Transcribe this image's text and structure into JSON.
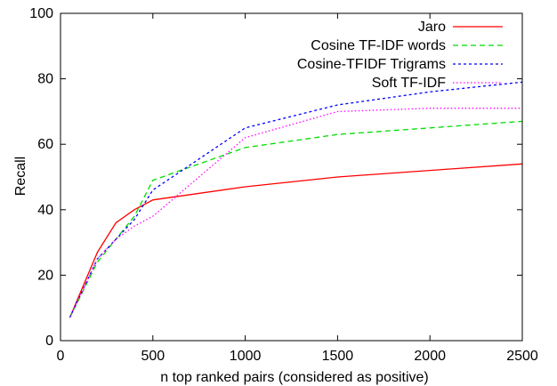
{
  "chart_data": {
    "type": "line",
    "title": "",
    "xlabel": "n top ranked pairs (considered as positive)",
    "ylabel": "Recall",
    "xlim": [
      0,
      2500
    ],
    "ylim": [
      0,
      100
    ],
    "xticks": [
      0,
      500,
      1000,
      1500,
      2000,
      2500
    ],
    "yticks": [
      0,
      20,
      40,
      60,
      80,
      100
    ],
    "grid": false,
    "legend_position": "top-right",
    "series": [
      {
        "name": "Jaro",
        "color": "#ff0000",
        "dash": "solid",
        "x": [
          50,
          200,
          300,
          400,
          500,
          1000,
          1500,
          2000,
          2500
        ],
        "y": [
          7,
          27,
          36,
          40,
          43,
          47,
          50,
          52,
          54
        ]
      },
      {
        "name": "Cosine TF-IDF words",
        "color": "#00dd00",
        "dash": "dashed",
        "x": [
          50,
          200,
          300,
          400,
          500,
          1000,
          1500,
          2000,
          2500
        ],
        "y": [
          7,
          24,
          31,
          38,
          49,
          59,
          63,
          65,
          67
        ]
      },
      {
        "name": "Cosine-TFIDF Trigrams",
        "color": "#0000ff",
        "dash": "dotted-short",
        "x": [
          50,
          200,
          300,
          400,
          500,
          1000,
          1500,
          2000,
          2500
        ],
        "y": [
          7,
          25,
          31,
          37,
          46,
          65,
          72,
          76,
          79
        ]
      },
      {
        "name": "Soft TF-IDF",
        "color": "#ff00ff",
        "dash": "dotted",
        "x": [
          50,
          200,
          300,
          400,
          500,
          1000,
          1500,
          2000,
          2500
        ],
        "y": [
          7,
          25,
          31,
          35,
          38,
          62,
          70,
          71,
          71
        ]
      }
    ]
  }
}
